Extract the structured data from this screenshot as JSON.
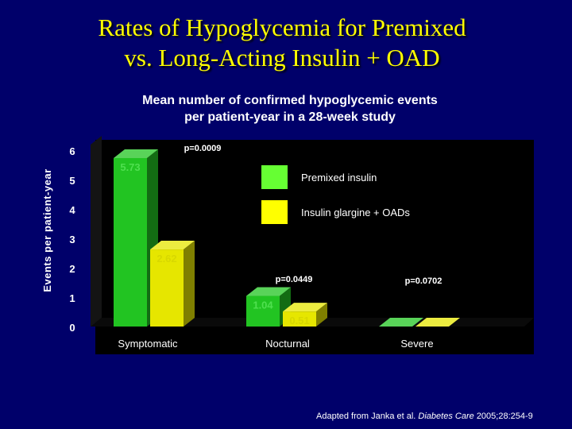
{
  "slide": {
    "title_line1": "Rates of Hypoglycemia for Premixed",
    "title_line2": "vs. Long-Acting Insulin + OAD",
    "subtitle_line1": "Mean number of confirmed hypoglycemic events",
    "subtitle_line2": "per patient-year in a 28-week study",
    "citation_prefix": "Adapted from Janka et al.",
    "citation_journal": "Diabetes Care",
    "citation_suffix": "2005;28:254-9"
  },
  "colors": {
    "premixed": "#22c422",
    "glargine": "#e6e600",
    "plot_bg": "#000000",
    "legend_premixed": "#66ff33",
    "legend_glargine": "#ffff00"
  },
  "chart_data": {
    "type": "bar",
    "title": "Mean number of confirmed hypoglycemic events per patient-year in a 28-week study",
    "xlabel": "",
    "ylabel": "Events per patient-year",
    "ylim": [
      0,
      6
    ],
    "yticks": [
      "0",
      "1",
      "2",
      "3",
      "4",
      "5",
      "6"
    ],
    "categories": [
      "Symptomatic",
      "Nocturnal",
      "Severe"
    ],
    "series": [
      {
        "name": "Premixed insulin",
        "values": [
          5.73,
          1.04,
          0
        ],
        "labels": [
          "5.73",
          "1.04",
          ""
        ]
      },
      {
        "name": "Insulin glargine + OADs",
        "values": [
          2.62,
          0.51,
          0
        ],
        "labels": [
          "2.62",
          "0.51",
          ""
        ]
      }
    ],
    "annotations": [
      "p=0.0009",
      "p=0.0449",
      "p=0.0702"
    ],
    "legend": "top-right"
  }
}
